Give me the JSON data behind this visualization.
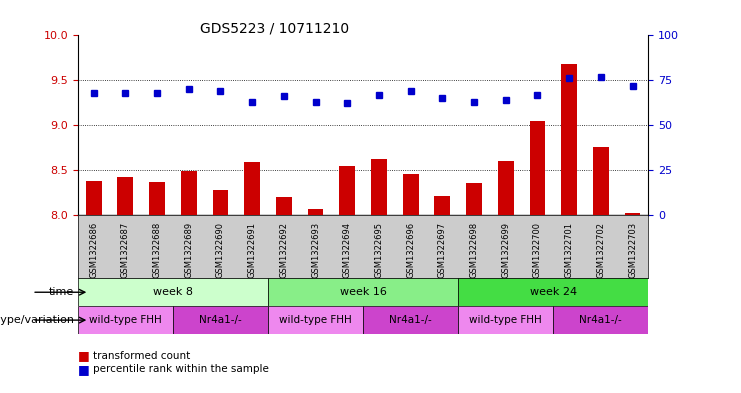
{
  "title": "GDS5223 / 10711210",
  "samples": [
    "GSM1322686",
    "GSM1322687",
    "GSM1322688",
    "GSM1322689",
    "GSM1322690",
    "GSM1322691",
    "GSM1322692",
    "GSM1322693",
    "GSM1322694",
    "GSM1322695",
    "GSM1322696",
    "GSM1322697",
    "GSM1322698",
    "GSM1322699",
    "GSM1322700",
    "GSM1322701",
    "GSM1322702",
    "GSM1322703"
  ],
  "bar_values": [
    8.37,
    8.42,
    8.36,
    8.49,
    8.27,
    8.59,
    8.2,
    8.06,
    8.54,
    8.62,
    8.45,
    8.21,
    8.35,
    8.6,
    9.04,
    9.68,
    8.75,
    8.02
  ],
  "dot_values": [
    68,
    68,
    68,
    70,
    69,
    63,
    66,
    63,
    62,
    67,
    69,
    65,
    63,
    64,
    67,
    76,
    77,
    72
  ],
  "bar_color": "#cc0000",
  "dot_color": "#0000cc",
  "ylim_left": [
    8.0,
    10.0
  ],
  "ylim_right": [
    0,
    100
  ],
  "yticks_left": [
    8.0,
    8.5,
    9.0,
    9.5,
    10.0
  ],
  "yticks_right": [
    0,
    25,
    50,
    75,
    100
  ],
  "grid_values": [
    8.5,
    9.0,
    9.5
  ],
  "time_row": [
    {
      "label": "week 8",
      "start": 0,
      "end": 6,
      "color": "#ccffcc"
    },
    {
      "label": "week 16",
      "start": 6,
      "end": 12,
      "color": "#88ee88"
    },
    {
      "label": "week 24",
      "start": 12,
      "end": 18,
      "color": "#44dd44"
    }
  ],
  "genotype_row": [
    {
      "label": "wild-type FHH",
      "start": 0,
      "end": 3,
      "color": "#ee88ee"
    },
    {
      "label": "Nr4a1-/-",
      "start": 3,
      "end": 6,
      "color": "#cc44cc"
    },
    {
      "label": "wild-type FHH",
      "start": 6,
      "end": 9,
      "color": "#ee88ee"
    },
    {
      "label": "Nr4a1-/-",
      "start": 9,
      "end": 12,
      "color": "#cc44cc"
    },
    {
      "label": "wild-type FHH",
      "start": 12,
      "end": 15,
      "color": "#ee88ee"
    },
    {
      "label": "Nr4a1-/-",
      "start": 15,
      "end": 18,
      "color": "#cc44cc"
    }
  ],
  "time_label": "time",
  "genotype_label": "genotype/variation",
  "legend_bar": "transformed count",
  "legend_dot": "percentile rank within the sample",
  "background_color": "#ffffff",
  "ylabel_left_color": "#cc0000",
  "ylabel_right_color": "#0000cc",
  "sample_bg_color": "#cccccc",
  "n_samples": 18
}
